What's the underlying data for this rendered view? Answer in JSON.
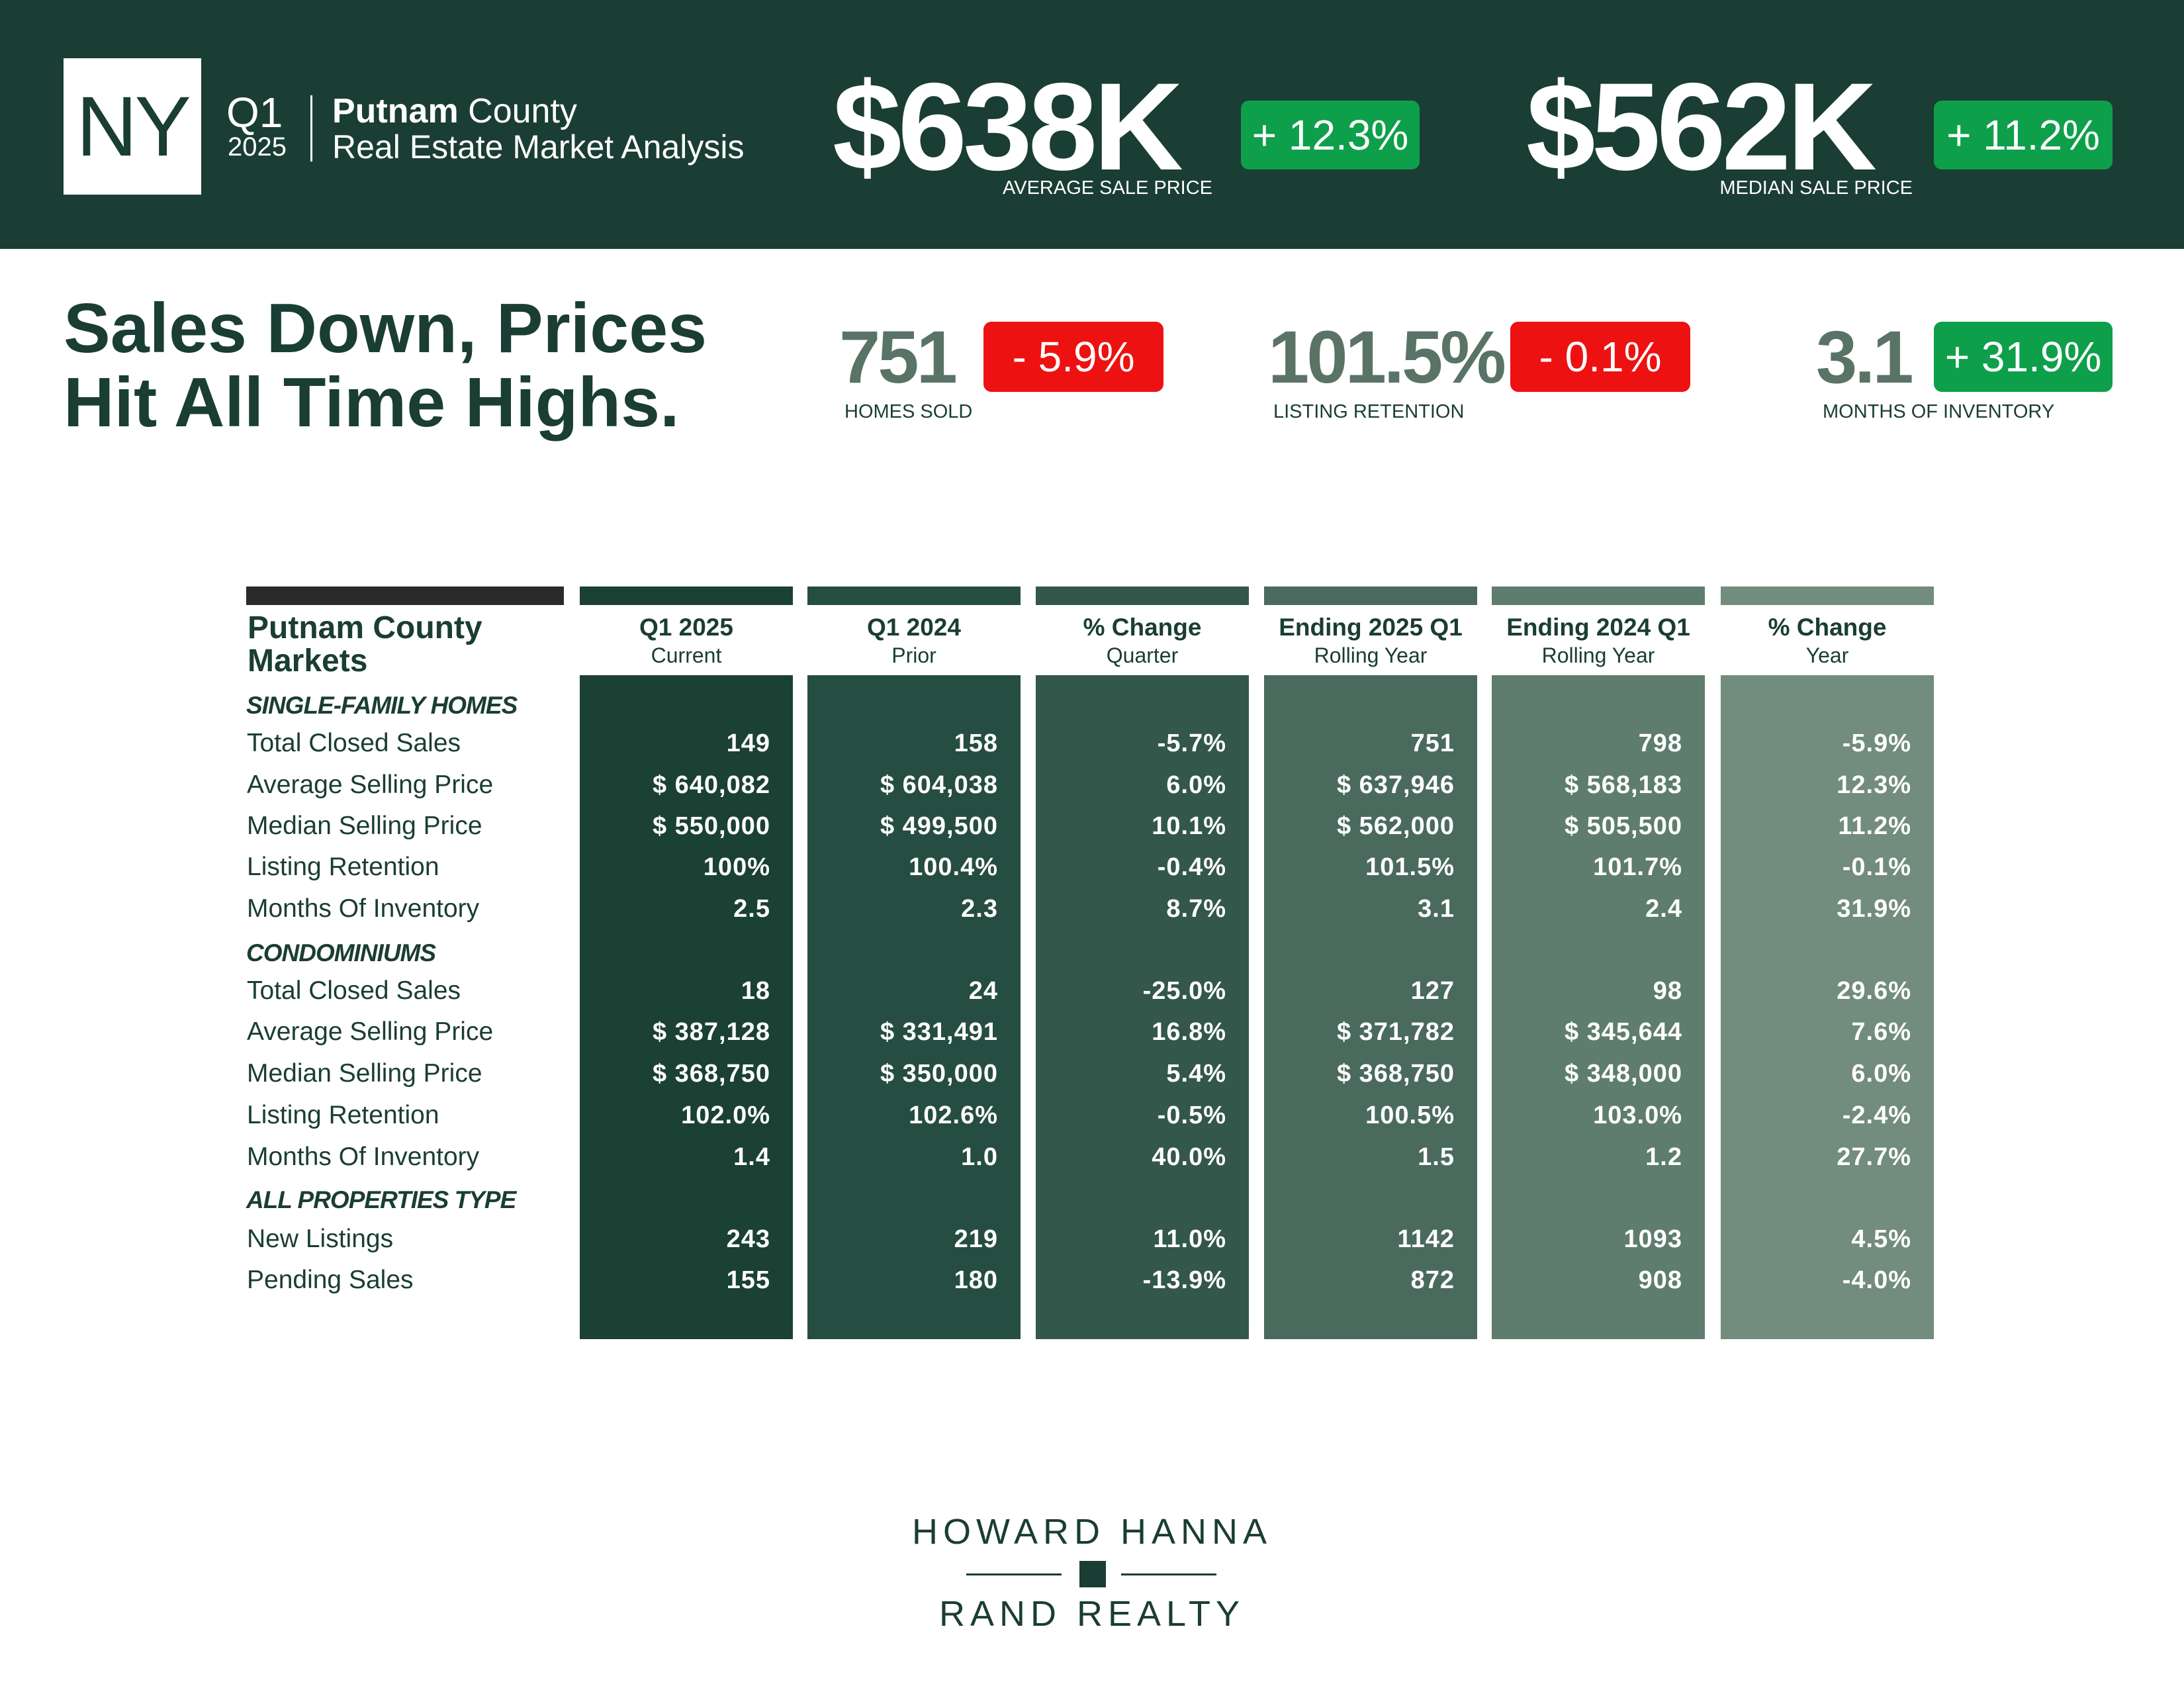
{
  "header": {
    "state": "NY",
    "quarter": "Q1",
    "year": "2025",
    "county_bold": "Putnam",
    "county_word": "County",
    "subtitle": "Real Estate Market Analysis",
    "avg_price": {
      "value": "$638K",
      "change": "+ 12.3%",
      "label": "AVERAGE SALE PRICE"
    },
    "median_price": {
      "value": "$562K",
      "change": "+ 11.2%",
      "label": "MEDIAN SALE PRICE"
    }
  },
  "headline": {
    "line1": "Sales Down, Prices",
    "line2": "Hit All Time Highs."
  },
  "kpis": [
    {
      "value": "751",
      "change": "- 5.9%",
      "label": "HOMES SOLD",
      "trend": "down"
    },
    {
      "value": "101.5%",
      "change": "- 0.1%",
      "label": "LISTING RETENTION",
      "trend": "down"
    },
    {
      "value": "3.1",
      "change": "+ 31.9%",
      "label": "MONTHS OF INVENTORY",
      "trend": "up"
    }
  ],
  "colors": {
    "header_bg": "#1a3d34",
    "badge_up": "#0e9f4b",
    "badge_down": "#ee1111",
    "columns": [
      "#1b4034",
      "#264d41",
      "#33574b",
      "#4a6a5d",
      "#5e7d6f",
      "#728c7e"
    ]
  },
  "table": {
    "title_line1": "Putnam County",
    "title_line2": "Markets",
    "columns": [
      {
        "title": "Q1 2025",
        "sub": "Current"
      },
      {
        "title": "Q1 2024",
        "sub": "Prior"
      },
      {
        "title": "% Change",
        "sub": "Quarter"
      },
      {
        "title": "Ending 2025 Q1",
        "sub": "Rolling Year"
      },
      {
        "title": "Ending 2024 Q1",
        "sub": "Rolling Year"
      },
      {
        "title": "% Change",
        "sub": "Year"
      }
    ],
    "sections": [
      {
        "title": "SINGLE-FAMILY HOMES",
        "rows": [
          {
            "label": "Total Closed Sales",
            "values": [
              "149",
              "158",
              "-5.7%",
              "751",
              "798",
              "-5.9%"
            ]
          },
          {
            "label": "Average Selling Price",
            "values": [
              "$ 640,082",
              "$ 604,038",
              "6.0%",
              "$ 637,946",
              "$ 568,183",
              "12.3%"
            ]
          },
          {
            "label": "Median Selling Price",
            "values": [
              "$ 550,000",
              "$ 499,500",
              "10.1%",
              "$ 562,000",
              "$ 505,500",
              "11.2%"
            ]
          },
          {
            "label": "Listing Retention",
            "values": [
              "100%",
              "100.4%",
              "-0.4%",
              "101.5%",
              "101.7%",
              "-0.1%"
            ]
          },
          {
            "label": "Months Of Inventory",
            "values": [
              "2.5",
              "2.3",
              "8.7%",
              "3.1",
              "2.4",
              "31.9%"
            ]
          }
        ]
      },
      {
        "title": "CONDOMINIUMS",
        "rows": [
          {
            "label": "Total Closed Sales",
            "values": [
              "18",
              "24",
              "-25.0%",
              "127",
              "98",
              "29.6%"
            ]
          },
          {
            "label": "Average Selling Price",
            "values": [
              "$ 387,128",
              "$ 331,491",
              "16.8%",
              "$ 371,782",
              "$ 345,644",
              "7.6%"
            ]
          },
          {
            "label": "Median Selling Price",
            "values": [
              "$ 368,750",
              "$ 350,000",
              "5.4%",
              "$ 368,750",
              "$ 348,000",
              "6.0%"
            ]
          },
          {
            "label": "Listing Retention",
            "values": [
              "102.0%",
              "102.6%",
              "-0.5%",
              "100.5%",
              "103.0%",
              "-2.4%"
            ]
          },
          {
            "label": "Months Of Inventory",
            "values": [
              "1.4",
              "1.0",
              "40.0%",
              "1.5",
              "1.2",
              "27.7%"
            ]
          }
        ]
      },
      {
        "title": "ALL PROPERTIES TYPE",
        "rows": [
          {
            "label": "New Listings",
            "values": [
              "243",
              "219",
              "11.0%",
              "1142",
              "1093",
              "4.5%"
            ]
          },
          {
            "label": "Pending Sales",
            "values": [
              "155",
              "180",
              "-13.9%",
              "872",
              "908",
              "-4.0%"
            ]
          }
        ]
      }
    ]
  },
  "logo": {
    "line1": "HOWARD HANNA",
    "line2": "RAND REALTY"
  }
}
